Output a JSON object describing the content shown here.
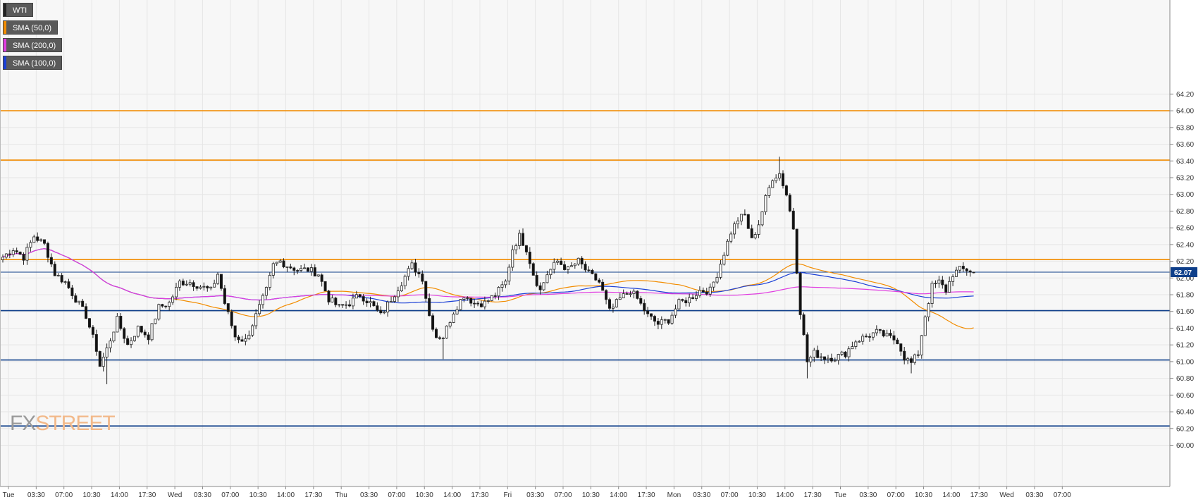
{
  "legend": [
    {
      "label": "WTI",
      "color": "#222222"
    },
    {
      "label": "SMA (50,0)",
      "color": "#f28c00"
    },
    {
      "label": "SMA (200,0)",
      "color": "#e03ce0"
    },
    {
      "label": "SMA (100,0)",
      "color": "#1a3fd6"
    }
  ],
  "logo": {
    "fx": "FX",
    "street": "STREET"
  },
  "colors": {
    "resistance": "#f28c00",
    "support": "#0f3f8a",
    "sma50": "#f28c00",
    "sma200": "#e03ce0",
    "sma100": "#1a3fd6",
    "last_price_line": "#0f3f8a",
    "grid": "#e6e6e6",
    "background": "#f7f7f7"
  },
  "chart_data": {
    "type": "candlestick",
    "symbol": "WTI",
    "timeframe": "30m",
    "ylim": [
      59.92,
      64.26
    ],
    "y_ticks": [
      60.0,
      60.2,
      60.4,
      60.6,
      60.8,
      61.0,
      61.2,
      61.4,
      61.6,
      61.8,
      62.0,
      62.2,
      62.4,
      62.6,
      62.8,
      63.0,
      63.2,
      63.4,
      63.6,
      63.8,
      64.0,
      64.2
    ],
    "y_tick_labels": [
      "60.00",
      "60.20",
      "60.40",
      "60.60",
      "60.80",
      "61.00",
      "61.20",
      "61.40",
      "61.60",
      "61.80",
      "62.00",
      "62.20",
      "62.40",
      "62.60",
      "62.80",
      "63.00",
      "63.20",
      "63.40",
      "63.60",
      "63.80",
      "64.00",
      "64.20"
    ],
    "x_labels": [
      "Tue",
      "03:30",
      "07:00",
      "10:30",
      "14:00",
      "17:30",
      "Wed",
      "03:30",
      "07:00",
      "10:30",
      "14:00",
      "17:30",
      "Thu",
      "03:30",
      "07:00",
      "10:30",
      "14:00",
      "17:30",
      "Fri",
      "03:30",
      "07:00",
      "10:30",
      "14:00",
      "17:30",
      "Mon",
      "03:30",
      "07:00",
      "10:30",
      "14:00",
      "17:30",
      "Tue",
      "03:30",
      "07:00",
      "10:30",
      "14:00",
      "17:30",
      "Wed",
      "03:30",
      "07:00"
    ],
    "last_price": 62.07,
    "last_price_label": "62.07",
    "horizontal_levels": [
      {
        "value": 64.0,
        "kind": "resistance"
      },
      {
        "value": 63.41,
        "kind": "resistance"
      },
      {
        "value": 62.22,
        "kind": "resistance"
      },
      {
        "value": 61.61,
        "kind": "support"
      },
      {
        "value": 61.02,
        "kind": "support"
      },
      {
        "value": 60.23,
        "kind": "support"
      }
    ],
    "candles_anchor": [
      [
        0,
        62.25
      ],
      [
        3,
        62.35
      ],
      [
        6,
        62.25
      ],
      [
        9,
        62.5
      ],
      [
        12,
        62.4
      ],
      [
        15,
        62.05
      ],
      [
        18,
        61.95
      ],
      [
        21,
        61.75
      ],
      [
        24,
        61.55
      ],
      [
        27,
        61.15
      ],
      [
        28,
        60.95
      ],
      [
        30,
        61.15
      ],
      [
        33,
        61.5
      ],
      [
        36,
        61.2
      ],
      [
        39,
        61.4
      ],
      [
        42,
        61.3
      ],
      [
        45,
        61.65
      ],
      [
        48,
        61.7
      ],
      [
        51,
        61.95
      ],
      [
        54,
        61.95
      ],
      [
        57,
        61.9
      ],
      [
        60,
        61.85
      ],
      [
        62,
        62.05
      ],
      [
        64,
        61.7
      ],
      [
        67,
        61.3
      ],
      [
        70,
        61.25
      ],
      [
        72,
        61.45
      ],
      [
        74,
        61.65
      ],
      [
        76,
        61.85
      ],
      [
        78,
        62.15
      ],
      [
        80,
        62.2
      ],
      [
        82,
        62.15
      ],
      [
        85,
        62.1
      ],
      [
        88,
        62.1
      ],
      [
        91,
        62.05
      ],
      [
        94,
        61.75
      ],
      [
        97,
        61.65
      ],
      [
        100,
        61.7
      ],
      [
        103,
        61.8
      ],
      [
        106,
        61.7
      ],
      [
        109,
        61.55
      ],
      [
        112,
        61.75
      ],
      [
        115,
        61.95
      ],
      [
        118,
        62.15
      ],
      [
        121,
        62.0
      ],
      [
        123,
        61.55
      ],
      [
        125,
        61.3
      ],
      [
        127,
        61.3
      ],
      [
        130,
        61.6
      ],
      [
        133,
        61.8
      ],
      [
        136,
        61.7
      ],
      [
        139,
        61.7
      ],
      [
        142,
        61.8
      ],
      [
        145,
        61.95
      ],
      [
        147,
        62.35
      ],
      [
        149,
        62.5
      ],
      [
        151,
        62.35
      ],
      [
        153,
        62.05
      ],
      [
        155,
        61.85
      ],
      [
        157,
        62.05
      ],
      [
        160,
        62.2
      ],
      [
        163,
        62.1
      ],
      [
        166,
        62.2
      ],
      [
        169,
        62.05
      ],
      [
        172,
        61.95
      ],
      [
        175,
        61.6
      ],
      [
        178,
        61.75
      ],
      [
        181,
        61.85
      ],
      [
        183,
        61.75
      ],
      [
        186,
        61.55
      ],
      [
        189,
        61.45
      ],
      [
        192,
        61.5
      ],
      [
        195,
        61.7
      ],
      [
        198,
        61.75
      ],
      [
        201,
        61.85
      ],
      [
        204,
        61.85
      ],
      [
        206,
        62.05
      ],
      [
        208,
        62.3
      ],
      [
        210,
        62.55
      ],
      [
        212,
        62.7
      ],
      [
        214,
        62.75
      ],
      [
        216,
        62.45
      ],
      [
        218,
        62.65
      ],
      [
        220,
        62.95
      ],
      [
        222,
        63.2
      ],
      [
        224,
        63.25
      ],
      [
        226,
        63.0
      ],
      [
        228,
        62.6
      ],
      [
        229,
        62.1
      ],
      [
        230,
        61.6
      ],
      [
        232,
        61.0
      ],
      [
        234,
        61.1
      ],
      [
        237,
        61.05
      ],
      [
        240,
        61.05
      ],
      [
        243,
        61.1
      ],
      [
        246,
        61.25
      ],
      [
        249,
        61.3
      ],
      [
        252,
        61.35
      ],
      [
        255,
        61.3
      ],
      [
        258,
        61.25
      ],
      [
        260,
        61.05
      ],
      [
        262,
        60.98
      ],
      [
        264,
        61.1
      ],
      [
        266,
        61.55
      ],
      [
        268,
        61.9
      ],
      [
        270,
        61.95
      ],
      [
        272,
        61.85
      ],
      [
        274,
        62.05
      ],
      [
        276,
        62.1
      ],
      [
        278,
        62.1
      ],
      [
        280,
        62.07
      ]
    ]
  }
}
